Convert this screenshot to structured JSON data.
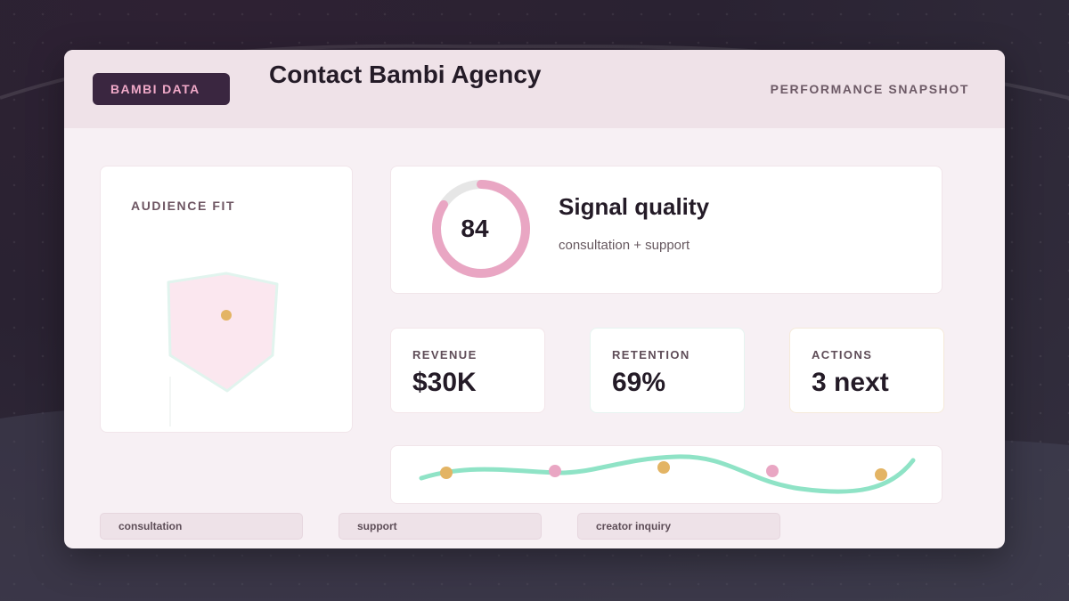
{
  "header": {
    "brand": "BAMBI DATA",
    "title": "Contact Bambi Agency",
    "snapshot": "PERFORMANCE SNAPSHOT"
  },
  "audience": {
    "label": "AUDIENCE FIT",
    "fill_color": "#fbe7ef",
    "marker_color": "#e3b464"
  },
  "signal": {
    "score": "84",
    "score_fraction": 0.84,
    "title": "Signal quality",
    "subtitle": "consultation + support",
    "ring_color": "#e9a6c3",
    "track_color": "#e6e6e6"
  },
  "metrics": [
    {
      "label": "REVENUE",
      "value": "$30K"
    },
    {
      "label": "RETENTION",
      "value": "69%"
    },
    {
      "label": "ACTIONS",
      "value": "3 next"
    }
  ],
  "trend": {
    "line_color": "#8fe3c6",
    "marker_colors": [
      "#e3b464",
      "#e9a6c3",
      "#e3b464",
      "#e9a6c3",
      "#e3b464"
    ]
  },
  "tags": [
    "consultation",
    "support",
    "creator inquiry"
  ]
}
